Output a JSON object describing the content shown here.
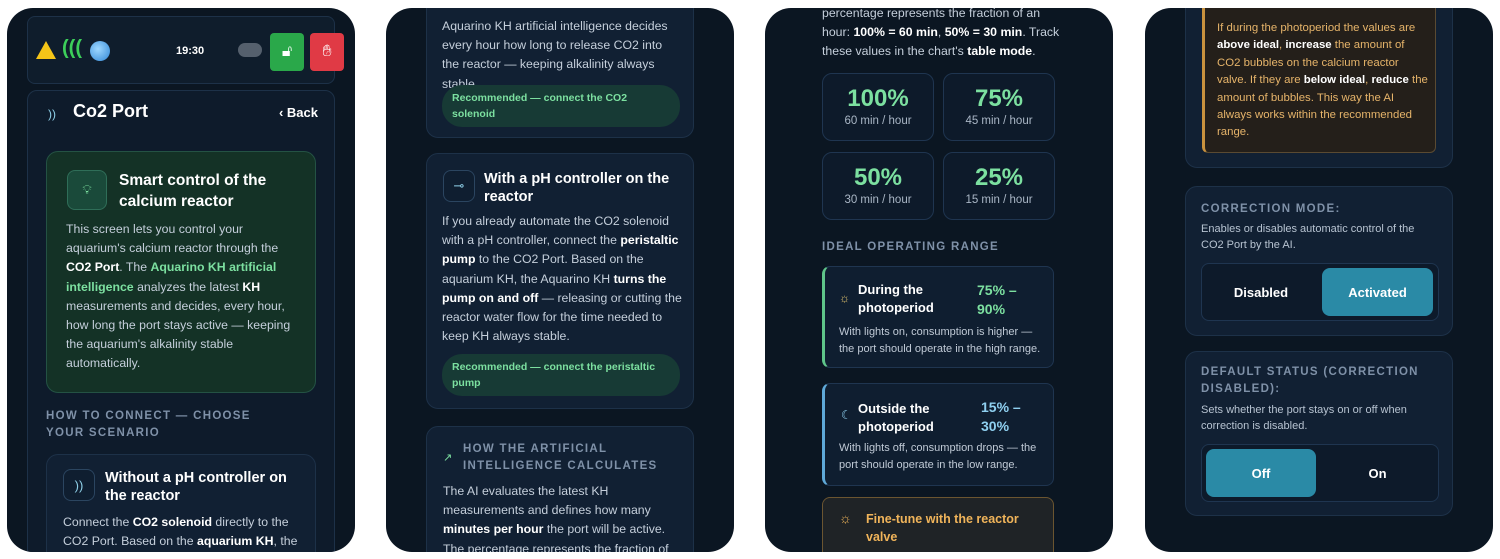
{
  "p1": {
    "time": "19:30",
    "title": "Co2 Port",
    "back": "Back",
    "intro_title": "Smart control of the calcium reactor",
    "intro_lines": [
      "This screen lets you control your aquarium's calcium reactor through the",
      "CO2 Port. The Aquarino KH artificial intelligence analyzes the latest KH measurements and decides, every hour, how long the port stays active — keeping the aquarium's alkalinity stable automatically."
    ],
    "how_to": "HOW TO CONNECT — CHOOSE YOUR SCENARIO",
    "card1_title": "Without a pH controller on the reactor",
    "card1_text": "Connect the CO2 solenoid directly to the CO2 Port. Based on the aquarium KH, the"
  },
  "p2": {
    "top_text": "Aquarino KH artificial intelligence decides every hour how long to release CO2 into the reactor — keeping alkalinity always stable.",
    "top_pill": "Recommended — connect the CO2 solenoid",
    "card2_title": "With a pH controller on the reactor",
    "card2_text": "If you already automate the CO2 solenoid with a pH controller, connect the peristaltic pump to the CO2 Port. Based on the aquarium KH, the Aquarino KH turns the pump on and off — releasing or cutting the reactor water flow for the time needed to keep KH always stable.",
    "card2_pill": "Recommended — connect the peristaltic pump",
    "ai_title": "HOW THE ARTIFICIAL INTELLIGENCE CALCULATES",
    "ai_text": "The AI evaluates the latest KH measurements and defines how many minutes per hour the port will be active. The percentage represents the fraction of an"
  },
  "p3": {
    "top_text": "percentage represents the fraction of an hour: 100% = 60 min, 50% = 30 min. Track these values in the chart's table mode.",
    "stats": [
      {
        "value": "100%",
        "label": "60 min / hour"
      },
      {
        "value": "75%",
        "label": "45 min / hour"
      },
      {
        "value": "50%",
        "label": "30 min / hour"
      },
      {
        "value": "25%",
        "label": "15 min / hour"
      }
    ],
    "ideal_title": "IDEAL OPERATING RANGE",
    "range1": {
      "title": "During the photoperiod",
      "value": "75% – 90%",
      "text": "With lights on, consumption is higher — the port should operate in the high range."
    },
    "range2": {
      "title": "Outside the photoperiod",
      "value": "15% – 30%",
      "text": "With lights off, consumption drops — the port should operate in the low range."
    },
    "finetune": "Fine-tune with the reactor valve",
    "colors": {
      "green": "#7ce0a0",
      "blue": "#8fd0f0",
      "orange": "#f0b45a"
    }
  },
  "p4": {
    "top_text": "If during the photoperiod the values are above ideal, increase the amount of CO2 bubbles on the calcium reactor valve. If they are below ideal, reduce the amount of bubbles. This way the AI always works within the recommended range.",
    "corr_title": "CORRECTION MODE:",
    "corr_desc": "Enables or disables automatic control of the CO2 Port by the AI.",
    "disabled": "Disabled",
    "activated": "Activated",
    "def_title": "DEFAULT STATUS (CORRECTION DISABLED):",
    "def_desc": "Sets whether the port stays on or off when correction is disabled.",
    "off": "Off",
    "on": "On"
  }
}
